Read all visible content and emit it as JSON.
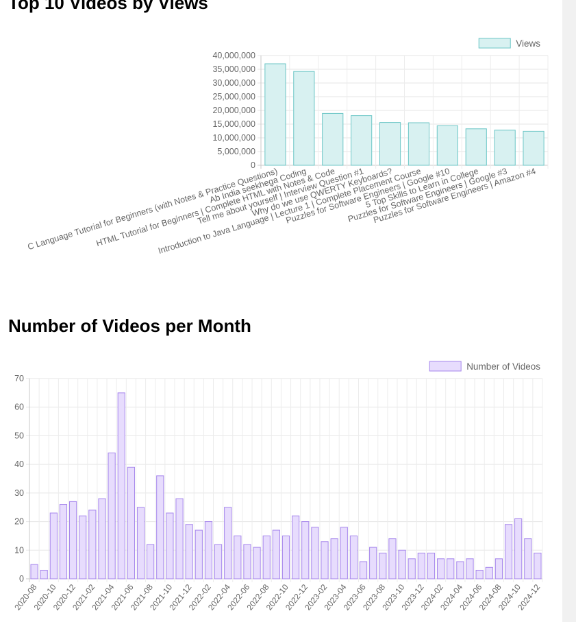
{
  "chart_data": [
    {
      "type": "bar",
      "title": "Top 10 Videos by Views",
      "legend": "Views",
      "legend_position": "top-right",
      "colors": {
        "fill": "#d8f1f1",
        "stroke": "#6bc6c6"
      },
      "categories": [
        "C Language Tutorial for Beginners (with Notes & Practice Questions)",
        "Ab India seekhega Coding",
        "HTML Tutorial for Beginners | Complete HTML with Notes & Code",
        "Tell me about yourself | Interview Question #1",
        "Why do we use QWERTY Keyboards?",
        "Introduction to Java Language | Lecture 1 | Complete Placement Course",
        "Puzzles for Software Engineers | Google #10",
        "5 Top Skills to Learn in College",
        "Puzzles for Software Engineers | Google #3",
        "Puzzles for Software Engineers | Amazon #4"
      ],
      "values": [
        37000000,
        34200000,
        18900000,
        18100000,
        15600000,
        15500000,
        14400000,
        13300000,
        12800000,
        12400000
      ],
      "ylim": [
        0,
        40000000
      ],
      "yticks": [
        "0",
        "5,000,000",
        "10,000,000",
        "15,000,000",
        "20,000,000",
        "25,000,000",
        "30,000,000",
        "35,000,000",
        "40,000,000"
      ],
      "xlabel": "",
      "ylabel": "",
      "grid": true
    },
    {
      "type": "bar",
      "title": "Number of Videos per Month",
      "legend": "Number of Videos",
      "legend_position": "top-right",
      "colors": {
        "fill": "#e7dcfd",
        "stroke": "#a686ec"
      },
      "x": [
        "2020-08",
        "2020-09",
        "2020-10",
        "2020-11",
        "2020-12",
        "2021-01",
        "2021-02",
        "2021-03",
        "2021-04",
        "2021-05",
        "2021-06",
        "2021-07",
        "2021-08",
        "2021-09",
        "2021-10",
        "2021-11",
        "2021-12",
        "2022-01",
        "2022-02",
        "2022-03",
        "2022-04",
        "2022-05",
        "2022-06",
        "2022-07",
        "2022-08",
        "2022-09",
        "2022-10",
        "2022-11",
        "2022-12",
        "2023-01",
        "2023-02",
        "2023-03",
        "2023-04",
        "2023-05",
        "2023-06",
        "2023-07",
        "2023-08",
        "2023-09",
        "2023-10",
        "2023-11",
        "2023-12",
        "2024-01",
        "2024-02",
        "2024-03",
        "2024-04",
        "2024-05",
        "2024-06",
        "2024-07",
        "2024-08",
        "2024-09",
        "2024-10",
        "2024-11",
        "2024-12"
      ],
      "values": [
        5,
        3,
        23,
        26,
        27,
        22,
        24,
        28,
        44,
        65,
        39,
        25,
        12,
        36,
        23,
        28,
        19,
        17,
        20,
        12,
        25,
        15,
        12,
        11,
        15,
        17,
        15,
        22,
        20,
        18,
        13,
        14,
        18,
        15,
        6,
        11,
        9,
        14,
        10,
        7,
        9,
        9,
        7,
        7,
        6,
        7,
        3,
        4,
        7,
        19,
        21,
        14,
        9
      ],
      "ylim": [
        0,
        70
      ],
      "yticks": [
        "0",
        "10",
        "20",
        "30",
        "40",
        "50",
        "60",
        "70"
      ],
      "xlabel": "",
      "ylabel": "",
      "grid": true
    }
  ]
}
